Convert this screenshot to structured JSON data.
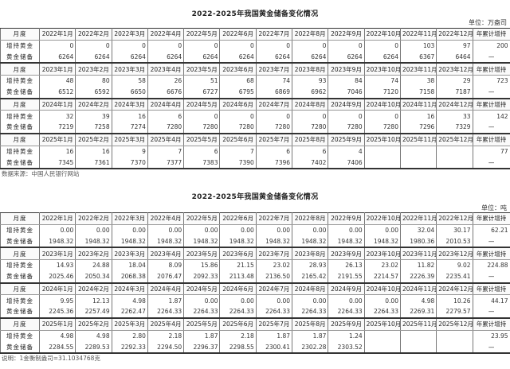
{
  "tables": [
    {
      "title": "2022-2025年我国黄金储备变化情况",
      "unit": "单位：万盎司",
      "row_labels": {
        "month": "月度",
        "increase": "增持黄金",
        "reserve": "黄金储备",
        "cumulative": "年累计增持"
      },
      "blocks": [
        {
          "months": [
            "2022年1月",
            "2022年2月",
            "2022年3月",
            "2022年4月",
            "2022年5月",
            "2022年6月",
            "2022年7月",
            "2022年8月",
            "2022年9月",
            "2022年10月",
            "2022年11月",
            "2022年12月"
          ],
          "increase": [
            "0",
            "0",
            "0",
            "0",
            "0",
            "0",
            "0",
            "0",
            "0",
            "0",
            "103",
            "97"
          ],
          "reserve": [
            "6264",
            "6264",
            "6264",
            "6264",
            "6264",
            "6264",
            "6264",
            "6264",
            "6264",
            "6264",
            "6367",
            "6464"
          ],
          "cumulative": "200",
          "cumulative_reserve": "—"
        },
        {
          "months": [
            "2023年1月",
            "2023年2月",
            "2023年3月",
            "2023年4月",
            "2023年5月",
            "2023年6月",
            "2023年7月",
            "2023年8月",
            "2023年9月",
            "2023年10月",
            "2023年11月",
            "2023年12月"
          ],
          "increase": [
            "48",
            "80",
            "58",
            "26",
            "51",
            "68",
            "74",
            "93",
            "84",
            "74",
            "38",
            "29"
          ],
          "reserve": [
            "6512",
            "6592",
            "6650",
            "6676",
            "6727",
            "6795",
            "6869",
            "6962",
            "7046",
            "7120",
            "7158",
            "7187"
          ],
          "cumulative": "723",
          "cumulative_reserve": "—"
        },
        {
          "months": [
            "2024年1月",
            "2024年2月",
            "2024年3月",
            "2024年4月",
            "2024年5月",
            "2024年6月",
            "2024年7月",
            "2024年8月",
            "2024年9月",
            "2024年10月",
            "2024年11月",
            "2024年12月"
          ],
          "increase": [
            "32",
            "39",
            "16",
            "6",
            "0",
            "0",
            "0",
            "0",
            "0",
            "0",
            "16",
            "33"
          ],
          "reserve": [
            "7219",
            "7258",
            "7274",
            "7280",
            "7280",
            "7280",
            "7280",
            "7280",
            "7280",
            "7280",
            "7296",
            "7329"
          ],
          "cumulative": "142",
          "cumulative_reserve": "—"
        },
        {
          "months": [
            "2025年1月",
            "2025年2月",
            "2025年3月",
            "2025年4月",
            "2025年5月",
            "2025年6月",
            "2025年7月",
            "2025年8月",
            "2025年9月",
            "2025年10月",
            "2025年11月",
            "2025年12月"
          ],
          "increase": [
            "16",
            "16",
            "9",
            "7",
            "6",
            "7",
            "6",
            "6",
            "4",
            "",
            "",
            ""
          ],
          "reserve": [
            "7345",
            "7361",
            "7370",
            "7377",
            "7383",
            "7390",
            "7396",
            "7402",
            "7406",
            "",
            "",
            ""
          ],
          "cumulative": "77",
          "cumulative_reserve": "—"
        }
      ],
      "note": "数据来源：中国人民银行网站"
    },
    {
      "title": "2022-2025年我国黄金储备变化情况",
      "unit": "单位：吨",
      "row_labels": {
        "month": "月度",
        "increase": "增持黄金",
        "reserve": "黄金储备",
        "cumulative": "年累计增持"
      },
      "blocks": [
        {
          "months": [
            "2022年1月",
            "2022年2月",
            "2022年3月",
            "2022年4月",
            "2022年5月",
            "2022年6月",
            "2022年7月",
            "2022年8月",
            "2022年9月",
            "2022年10月",
            "2022年11月",
            "2022年12月"
          ],
          "increase": [
            "0.00",
            "0.00",
            "0.00",
            "0.00",
            "0.00",
            "0.00",
            "0.00",
            "0.00",
            "0.00",
            "0.00",
            "32.04",
            "30.17"
          ],
          "reserve": [
            "1948.32",
            "1948.32",
            "1948.32",
            "1948.32",
            "1948.32",
            "1948.32",
            "1948.32",
            "1948.32",
            "1948.32",
            "1948.32",
            "1980.36",
            "2010.53"
          ],
          "cumulative": "62.21",
          "cumulative_reserve": "—"
        },
        {
          "months": [
            "2023年1月",
            "2023年2月",
            "2023年3月",
            "2023年4月",
            "2023年5月",
            "2023年6月",
            "2023年7月",
            "2023年8月",
            "2023年9月",
            "2023年10月",
            "2023年11月",
            "2023年12月"
          ],
          "increase": [
            "14.93",
            "24.88",
            "18.04",
            "8.09",
            "15.86",
            "21.15",
            "23.02",
            "28.93",
            "26.13",
            "23.02",
            "11.82",
            "9.02"
          ],
          "reserve": [
            "2025.46",
            "2050.34",
            "2068.38",
            "2076.47",
            "2092.33",
            "2113.48",
            "2136.50",
            "2165.42",
            "2191.55",
            "2214.57",
            "2226.39",
            "2235.41"
          ],
          "cumulative": "224.88",
          "cumulative_reserve": "—"
        },
        {
          "months": [
            "2024年1月",
            "2024年2月",
            "2024年3月",
            "2024年4月",
            "2024年5月",
            "2024年6月",
            "2024年7月",
            "2024年8月",
            "2024年9月",
            "2024年10月",
            "2024年11月",
            "2024年12月"
          ],
          "increase": [
            "9.95",
            "12.13",
            "4.98",
            "1.87",
            "0.00",
            "0.00",
            "0.00",
            "0.00",
            "0.00",
            "0.00",
            "4.98",
            "10.26"
          ],
          "reserve": [
            "2245.36",
            "2257.49",
            "2262.47",
            "2264.33",
            "2264.33",
            "2264.33",
            "2264.33",
            "2264.33",
            "2264.33",
            "2264.33",
            "2269.31",
            "2279.57"
          ],
          "cumulative": "44.17",
          "cumulative_reserve": "—"
        },
        {
          "months": [
            "2025年1月",
            "2025年2月",
            "2025年3月",
            "2025年4月",
            "2025年5月",
            "2025年6月",
            "2025年7月",
            "2025年8月",
            "2025年9月",
            "2025年10月",
            "2025年11月",
            "2025年12月"
          ],
          "increase": [
            "4.98",
            "4.98",
            "2.80",
            "2.18",
            "1.87",
            "2.18",
            "1.87",
            "1.87",
            "1.24",
            "",
            "",
            ""
          ],
          "reserve": [
            "2284.55",
            "2289.53",
            "2292.33",
            "2294.50",
            "2296.37",
            "2298.55",
            "2300.41",
            "2302.28",
            "2303.52",
            "",
            "",
            ""
          ],
          "cumulative": "23.95",
          "cumulative_reserve": "—"
        }
      ],
      "note": "说明：1金衡制盎司=31.1034768克"
    }
  ]
}
